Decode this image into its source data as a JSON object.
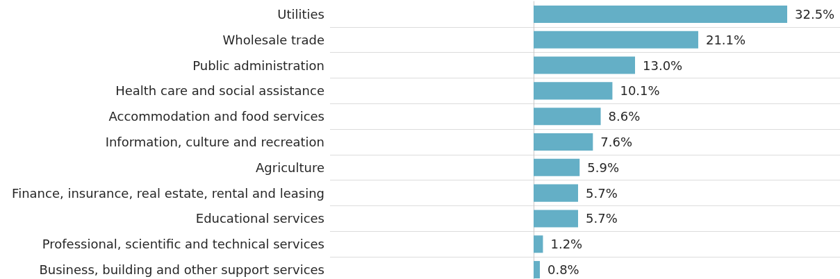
{
  "chart_data": {
    "type": "bar",
    "orientation": "horizontal",
    "categories": [
      "Utilities",
      "Wholesale trade",
      "Public administration",
      "Health care and social assistance",
      "Accommodation and food services",
      "Information, culture and recreation",
      "Agriculture",
      "Finance, insurance, real estate, rental and leasing",
      "Educational services",
      "Professional, scientific and technical services",
      "Business, building and other support services"
    ],
    "values": [
      32.5,
      21.1,
      13.0,
      10.1,
      8.6,
      7.6,
      5.9,
      5.7,
      5.7,
      1.2,
      0.8
    ],
    "value_labels": [
      "32.5%",
      "21.1%",
      "13.0%",
      "10.1%",
      "8.6%",
      "7.6%",
      "5.9%",
      "5.7%",
      "5.7%",
      "1.2%",
      "0.8%"
    ],
    "color": "#64afc6",
    "grid": "y",
    "tick_labels": "y"
  }
}
